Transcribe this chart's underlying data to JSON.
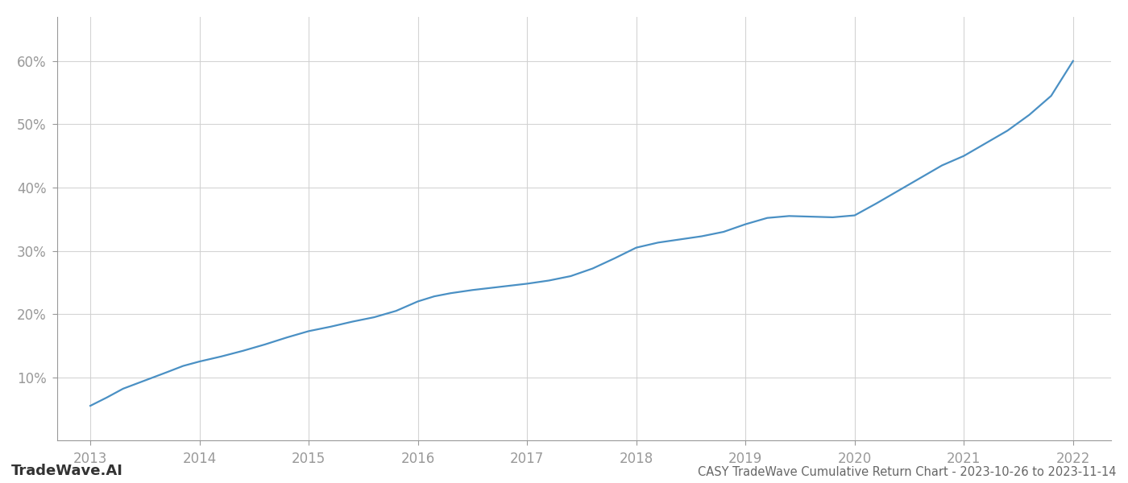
{
  "title": "CASY TradeWave Cumulative Return Chart - 2023-10-26 to 2023-11-14",
  "watermark": "TradeWave.AI",
  "line_color": "#4a90c4",
  "background_color": "#ffffff",
  "grid_color": "#d0d0d0",
  "x_values": [
    2013.0,
    2013.15,
    2013.3,
    2013.5,
    2013.7,
    2013.85,
    2014.0,
    2014.2,
    2014.4,
    2014.6,
    2014.8,
    2015.0,
    2015.2,
    2015.4,
    2015.6,
    2015.8,
    2016.0,
    2016.15,
    2016.3,
    2016.5,
    2016.7,
    2016.85,
    2017.0,
    2017.2,
    2017.4,
    2017.6,
    2017.8,
    2018.0,
    2018.2,
    2018.4,
    2018.6,
    2018.8,
    2019.0,
    2019.2,
    2019.4,
    2019.6,
    2019.8,
    2020.0,
    2020.2,
    2020.4,
    2020.6,
    2020.8,
    2021.0,
    2021.2,
    2021.4,
    2021.6,
    2021.8,
    2022.0
  ],
  "y_values": [
    5.5,
    6.8,
    8.2,
    9.5,
    10.8,
    11.8,
    12.5,
    13.3,
    14.2,
    15.2,
    16.3,
    17.3,
    18.0,
    18.8,
    19.5,
    20.5,
    22.0,
    22.8,
    23.3,
    23.8,
    24.2,
    24.5,
    24.8,
    25.3,
    26.0,
    27.2,
    28.8,
    30.5,
    31.3,
    31.8,
    32.3,
    33.0,
    34.2,
    35.2,
    35.5,
    35.4,
    35.3,
    35.6,
    37.5,
    39.5,
    41.5,
    43.5,
    45.0,
    47.0,
    49.0,
    51.5,
    54.5,
    60.0
  ],
  "xlim": [
    2012.7,
    2022.35
  ],
  "ylim": [
    0,
    67
  ],
  "yticks": [
    10,
    20,
    30,
    40,
    50,
    60
  ],
  "xticks": [
    2013,
    2014,
    2015,
    2016,
    2017,
    2018,
    2019,
    2020,
    2021,
    2022
  ],
  "line_width": 1.6,
  "title_fontsize": 10.5,
  "tick_fontsize": 12,
  "watermark_fontsize": 13,
  "title_color": "#666666",
  "tick_color": "#999999",
  "spine_color": "#999999",
  "grid_alpha": 0.9
}
